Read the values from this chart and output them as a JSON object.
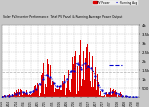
{
  "title": "Solar PV/Inverter Performance  Total PV Panel & Running Average Power Output",
  "bg_color": "#c8c8c8",
  "plot_bg_color": "#ffffff",
  "bar_color": "#dd0000",
  "avg_color": "#0000cc",
  "avg_line_color": "#aaaaaa",
  "grid_color": "#aaaaaa",
  "ylim": [
    0,
    4000
  ],
  "yticks": [
    500,
    1000,
    1500,
    2000,
    2500,
    3000,
    3500,
    4000
  ],
  "ytick_labels": [
    "500",
    "1k",
    "1.5k",
    "2k",
    "2.5k",
    "3k",
    "3.5k",
    "4k"
  ],
  "n_bars": 200,
  "seed": 7,
  "hline_y": 1400,
  "hline_color": "#aaaaaa"
}
